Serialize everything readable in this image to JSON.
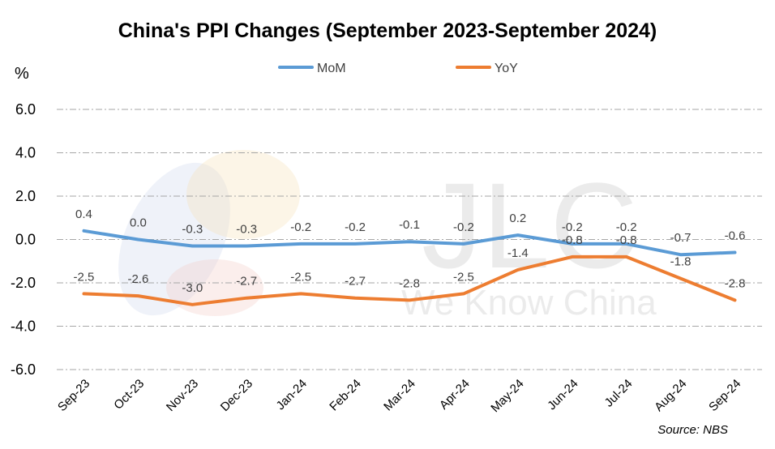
{
  "chart_data": {
    "type": "line",
    "title": "China's PPI Changes (September 2023-September 2024)",
    "ylabel": "%",
    "xlabel": "",
    "ylim": [
      -6.0,
      6.0
    ],
    "yticks": [
      "6.0",
      "4.0",
      "2.0",
      "0.0",
      "-2.0",
      "-4.0",
      "-6.0"
    ],
    "grid": true,
    "legend_position": "top-center",
    "categories": [
      "Sep-23",
      "Oct-23",
      "Nov-23",
      "Dec-23",
      "Jan-24",
      "Feb-24",
      "Mar-24",
      "Apr-24",
      "May-24",
      "Jun-24",
      "Jul-24",
      "Aug-24",
      "Sep-24"
    ],
    "series": [
      {
        "name": "MoM",
        "color": "#5b9bd5",
        "values": [
          0.4,
          0.0,
          -0.3,
          -0.3,
          -0.2,
          -0.2,
          -0.1,
          -0.2,
          0.2,
          -0.2,
          -0.2,
          -0.7,
          -0.6
        ],
        "labels": [
          "0.4",
          "0.0",
          "-0.3",
          "-0.3",
          "-0.2",
          "-0.2",
          "-0.1",
          "-0.2",
          "0.2",
          "-0.2",
          "-0.2",
          "-0.7",
          "-0.6"
        ]
      },
      {
        "name": "YoY",
        "color": "#ed7d31",
        "values": [
          -2.5,
          -2.6,
          -3.0,
          -2.7,
          -2.5,
          -2.7,
          -2.8,
          -2.5,
          -1.4,
          -0.8,
          -0.8,
          -1.8,
          -2.8
        ],
        "labels": [
          "-2.5",
          "-2.6",
          "-3.0",
          "-2.7",
          "-2.5",
          "-2.7",
          "-2.8",
          "-2.5",
          "-1.4",
          "-0.8",
          "-0.8",
          "-1.8",
          "-2.8"
        ]
      }
    ],
    "source": "Source: NBS"
  },
  "watermark": {
    "logo_text": "JLC",
    "tagline": "We Know China"
  }
}
